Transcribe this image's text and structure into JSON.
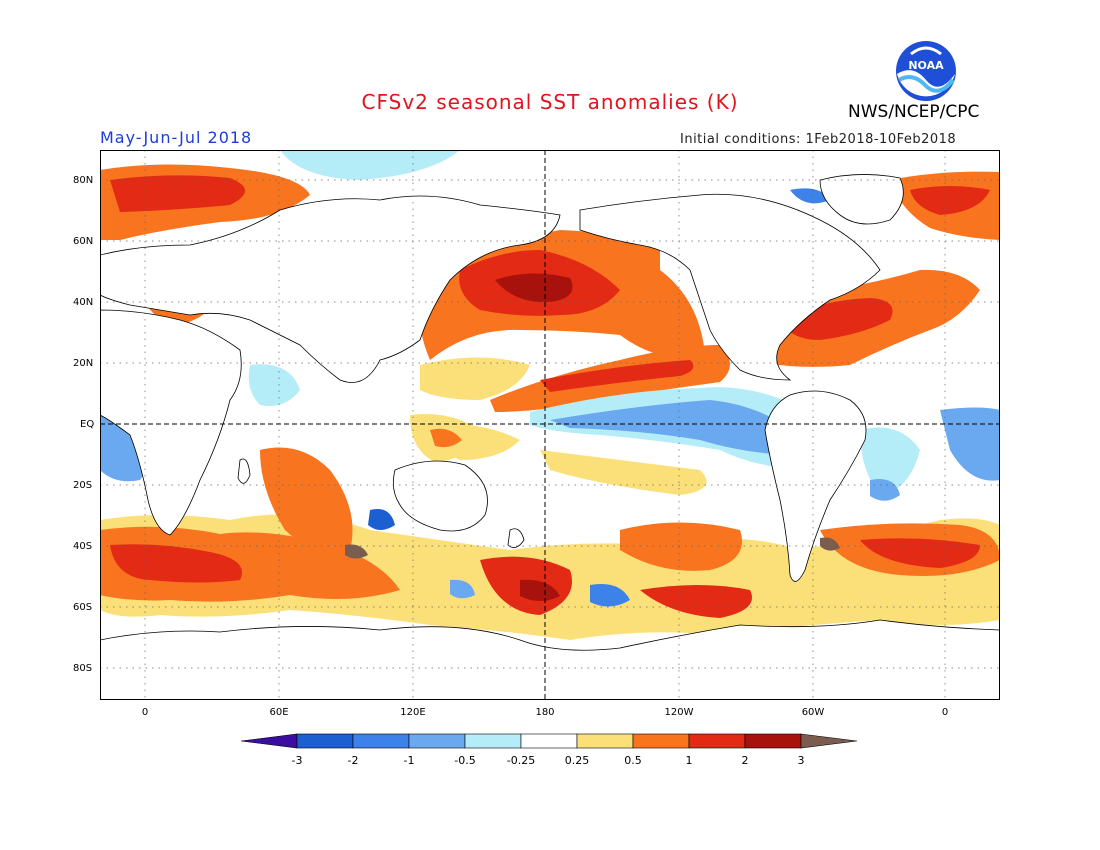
{
  "title": "CFSv2 seasonal SST anomalies (K)",
  "period": "May-Jun-Jul 2018",
  "initial_conditions": "Initial conditions: 1Feb2018-10Feb2018",
  "agency": "NWS/NCEP/CPC",
  "logo": {
    "text": "NOAA",
    "icon": "noaa-logo"
  },
  "map": {
    "projection": "equirectangular",
    "lon_range": [
      -20,
      382
    ],
    "lat_range": [
      -90,
      90
    ],
    "graticule": "dotted 20deg",
    "reference_lines": [
      "equator",
      "180 meridian"
    ]
  },
  "x_ticks": [
    "0",
    "60E",
    "120E",
    "180",
    "120W",
    "60W",
    "0"
  ],
  "y_ticks": [
    "80N",
    "60N",
    "40N",
    "20N",
    "EQ",
    "20S",
    "40S",
    "60S",
    "80S"
  ],
  "colorbar": {
    "labels": [
      "-3",
      "-2",
      "-1",
      "-0.5",
      "-0.25",
      "0.25",
      "0.5",
      "1",
      "2",
      "3"
    ],
    "colors": [
      "#3a0fa0",
      "#1c5fd0",
      "#3c82e8",
      "#6aa8f0",
      "#b4ecf8",
      "#ffffff",
      "#fbe07a",
      "#f8741e",
      "#e22a14",
      "#a8120c",
      "#7a5c50"
    ]
  }
}
